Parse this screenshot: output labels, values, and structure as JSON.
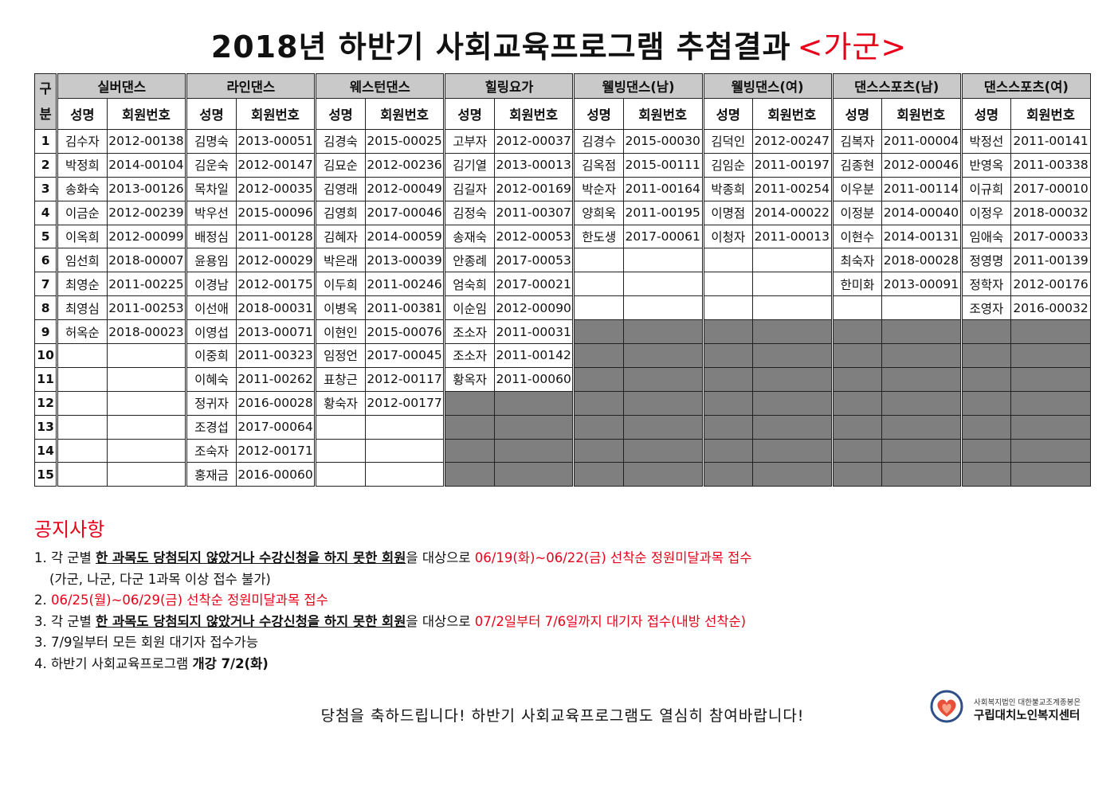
{
  "title": {
    "main": "2018년 하반기 사회교육프로그램 추첨결과",
    "group": "<가군>"
  },
  "table": {
    "gubun": "구\n분",
    "sub_name": "성명",
    "sub_id": "회원번호",
    "programs": [
      {
        "name": "실버댄스",
        "rows": [
          [
            "김수자",
            "2012-00138"
          ],
          [
            "박정희",
            "2014-00104"
          ],
          [
            "송화숙",
            "2013-00126"
          ],
          [
            "이금순",
            "2012-00239"
          ],
          [
            "이옥희",
            "2012-00099"
          ],
          [
            "임선희",
            "2018-00007"
          ],
          [
            "최영순",
            "2011-00225"
          ],
          [
            "최영심",
            "2011-00253"
          ],
          [
            "허옥순",
            "2018-00023"
          ],
          [
            "",
            ""
          ],
          [
            "",
            ""
          ],
          [
            "",
            ""
          ],
          [
            "",
            ""
          ],
          [
            "",
            ""
          ],
          [
            "",
            ""
          ]
        ],
        "shaded_from": 16
      },
      {
        "name": "라인댄스",
        "rows": [
          [
            "김명숙",
            "2013-00051"
          ],
          [
            "김운숙",
            "2012-00147"
          ],
          [
            "목차일",
            "2012-00035"
          ],
          [
            "박우선",
            "2015-00096"
          ],
          [
            "배정심",
            "2011-00128"
          ],
          [
            "윤용임",
            "2012-00029"
          ],
          [
            "이경남",
            "2012-00175"
          ],
          [
            "이선애",
            "2018-00031"
          ],
          [
            "이영섭",
            "2013-00071"
          ],
          [
            "이중희",
            "2011-00323"
          ],
          [
            "이혜숙",
            "2011-00262"
          ],
          [
            "정귀자",
            "2016-00028"
          ],
          [
            "조경섭",
            "2017-00064"
          ],
          [
            "조숙자",
            "2012-00171"
          ],
          [
            "홍재금",
            "2016-00060"
          ]
        ],
        "shaded_from": 16
      },
      {
        "name": "웨스턴댄스",
        "rows": [
          [
            "김경숙",
            "2015-00025"
          ],
          [
            "김묘순",
            "2012-00236"
          ],
          [
            "김영래",
            "2012-00049"
          ],
          [
            "김영희",
            "2017-00046"
          ],
          [
            "김혜자",
            "2014-00059"
          ],
          [
            "박은래",
            "2013-00039"
          ],
          [
            "이두희",
            "2011-00246"
          ],
          [
            "이병옥",
            "2011-00381"
          ],
          [
            "이현인",
            "2015-00076"
          ],
          [
            "임정언",
            "2017-00045"
          ],
          [
            "표창근",
            "2012-00117"
          ],
          [
            "황숙자",
            "2012-00177"
          ],
          [
            "",
            ""
          ],
          [
            "",
            ""
          ],
          [
            "",
            ""
          ]
        ],
        "shaded_from": 16
      },
      {
        "name": "힐링요가",
        "rows": [
          [
            "고부자",
            "2012-00037"
          ],
          [
            "김기열",
            "2013-00013"
          ],
          [
            "김길자",
            "2012-00169"
          ],
          [
            "김정숙",
            "2011-00307"
          ],
          [
            "송재숙",
            "2012-00053"
          ],
          [
            "안종례",
            "2017-00053"
          ],
          [
            "엄숙희",
            "2017-00021"
          ],
          [
            "이순임",
            "2012-00090"
          ],
          [
            "조소자",
            "2011-00031"
          ],
          [
            "조소자",
            "2011-00142"
          ],
          [
            "황옥자",
            "2011-00060"
          ],
          [
            "",
            ""
          ],
          [
            "",
            ""
          ],
          [
            "",
            ""
          ],
          [
            "",
            ""
          ]
        ],
        "shaded_from": 12
      },
      {
        "name": "웰빙댄스(남)",
        "rows": [
          [
            "김경수",
            "2015-00030"
          ],
          [
            "김옥점",
            "2015-00111"
          ],
          [
            "박순자",
            "2011-00164"
          ],
          [
            "양희욱",
            "2011-00195"
          ],
          [
            "한도생",
            "2017-00061"
          ],
          [
            "",
            ""
          ],
          [
            "",
            ""
          ],
          [
            "",
            ""
          ],
          [
            "",
            ""
          ],
          [
            "",
            ""
          ],
          [
            "",
            ""
          ],
          [
            "",
            ""
          ],
          [
            "",
            ""
          ],
          [
            "",
            ""
          ],
          [
            "",
            ""
          ]
        ],
        "shaded_from": 9
      },
      {
        "name": "웰빙댄스(여)",
        "rows": [
          [
            "김덕인",
            "2012-00247"
          ],
          [
            "김임순",
            "2011-00197"
          ],
          [
            "박종희",
            "2011-00254"
          ],
          [
            "이명점",
            "2014-00022"
          ],
          [
            "이청자",
            "2011-00013"
          ],
          [
            "",
            ""
          ],
          [
            "",
            ""
          ],
          [
            "",
            ""
          ],
          [
            "",
            ""
          ],
          [
            "",
            ""
          ],
          [
            "",
            ""
          ],
          [
            "",
            ""
          ],
          [
            "",
            ""
          ],
          [
            "",
            ""
          ],
          [
            "",
            ""
          ]
        ],
        "shaded_from": 9
      },
      {
        "name": "댄스스포츠(남)",
        "rows": [
          [
            "김복자",
            "2011-00004"
          ],
          [
            "김종현",
            "2012-00046"
          ],
          [
            "이우분",
            "2011-00114"
          ],
          [
            "이정분",
            "2014-00040"
          ],
          [
            "이현수",
            "2014-00131"
          ],
          [
            "최숙자",
            "2018-00028"
          ],
          [
            "한미화",
            "2013-00091"
          ],
          [
            "",
            ""
          ],
          [
            "",
            ""
          ],
          [
            "",
            ""
          ],
          [
            "",
            ""
          ],
          [
            "",
            ""
          ],
          [
            "",
            ""
          ],
          [
            "",
            ""
          ],
          [
            "",
            ""
          ]
        ],
        "shaded_from": 9
      },
      {
        "name": "댄스스포츠(여)",
        "rows": [
          [
            "박정선",
            "2011-00141"
          ],
          [
            "반영옥",
            "2011-00338"
          ],
          [
            "이규희",
            "2017-00010"
          ],
          [
            "이정우",
            "2018-00032"
          ],
          [
            "임애숙",
            "2017-00033"
          ],
          [
            "정영명",
            "2011-00139"
          ],
          [
            "정학자",
            "2012-00176"
          ],
          [
            "조영자",
            "2016-00032"
          ],
          [
            "",
            ""
          ],
          [
            "",
            ""
          ],
          [
            "",
            ""
          ],
          [
            "",
            ""
          ],
          [
            "",
            ""
          ],
          [
            "",
            ""
          ],
          [
            "",
            ""
          ]
        ],
        "shaded_from": 9
      }
    ],
    "row_numbers": [
      "1",
      "2",
      "3",
      "4",
      "5",
      "6",
      "7",
      "8",
      "9",
      "10",
      "11",
      "12",
      "13",
      "14",
      "15"
    ]
  },
  "notice": {
    "title": "공지사항",
    "l1_pre": "1. 각 군별 ",
    "l1_ul": "한 과목도 당첨되지 않았거나 수강신청을 하지 못한 회원",
    "l1_mid": "을 대상으로 ",
    "l1_red": "06/19(화)~06/22(금) 선착순 정원미달과목 접수",
    "l1_sub": "(가군, 나군, 다군  1과목 이상 접수 불가)",
    "l2_pre": "2. ",
    "l2_red": "06/25(월)~06/29(금) 선착순 정원미달과목 접수",
    "l3_pre": "3. 각 군별 ",
    "l3_ul": "한 과목도 당첨되지 않았거나 수강신청을 하지 못한 회원",
    "l3_mid": "을 대상으로 ",
    "l3_red": "07/2일부터 7/6일까지 대기자 접수(내방 선착순)",
    "l4": "3. 7/9일부터 모든 회원 대기자 접수가능",
    "l5_pre": "4. 하반기 사회교육프로그램 ",
    "l5_b": "개강 7/2(화)"
  },
  "congrats": "당첨을 축하드립니다! 하반기 사회교육프로그램도 열심히 참여바랍니다!",
  "logo": {
    "sub": "사회복지법인 대한불교조계종봉은",
    "main": "구립대치노인복지센터"
  },
  "colors": {
    "accent_red": "#e8001a",
    "header_gray": "#c9c9c9",
    "shade_gray": "#7f7f7f"
  }
}
